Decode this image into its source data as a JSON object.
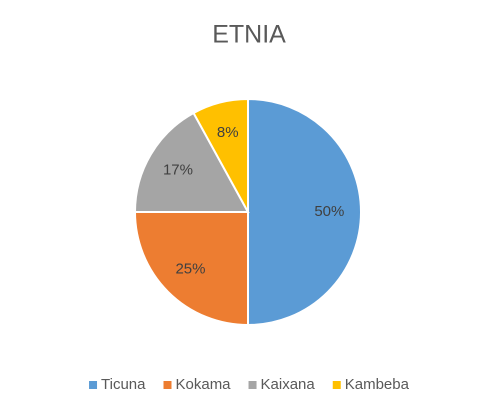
{
  "chart_data": {
    "type": "pie",
    "title": "ETNIA",
    "categories": [
      "Ticuna",
      "Kokama",
      "Kaixana",
      "Kambeba"
    ],
    "values": [
      50,
      25,
      17,
      8
    ],
    "value_labels": [
      "50%",
      "25%",
      "17%",
      "8%"
    ],
    "colors": [
      "#5b9bd5",
      "#ed7d31",
      "#a5a5a5",
      "#ffc000"
    ],
    "legend": "bottom"
  }
}
